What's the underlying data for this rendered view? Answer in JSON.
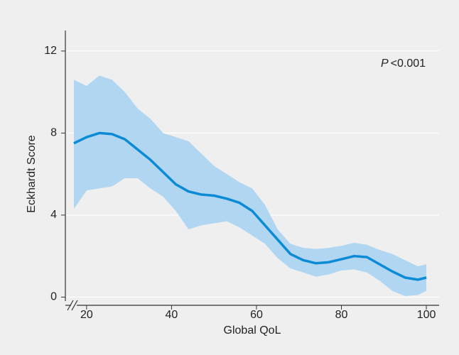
{
  "chart_data": {
    "type": "band-line",
    "x_label": "Global QoL",
    "y_label": "Eckhardt Score",
    "annotation": {
      "symbol": "P",
      "text": "<0.001"
    },
    "x": [
      17,
      20,
      23,
      26,
      29,
      32,
      35,
      38,
      41,
      44,
      47,
      50,
      53,
      56,
      59,
      62,
      65,
      68,
      71,
      74,
      77,
      80,
      83,
      86,
      89,
      92,
      95,
      98,
      100
    ],
    "values": [
      7.5,
      7.8,
      8.0,
      7.95,
      7.7,
      7.2,
      6.7,
      6.1,
      5.5,
      5.15,
      5.0,
      4.95,
      4.8,
      4.6,
      4.2,
      3.5,
      2.8,
      2.1,
      1.8,
      1.65,
      1.7,
      1.85,
      2.0,
      1.95,
      1.6,
      1.25,
      0.95,
      0.85,
      0.95
    ],
    "upper": [
      10.6,
      10.3,
      10.8,
      10.6,
      10.0,
      9.2,
      8.7,
      8.0,
      7.8,
      7.6,
      7.0,
      6.4,
      6.0,
      5.6,
      5.3,
      4.5,
      3.3,
      2.6,
      2.4,
      2.35,
      2.4,
      2.5,
      2.65,
      2.55,
      2.3,
      2.1,
      1.8,
      1.5,
      1.6
    ],
    "lower": [
      4.3,
      5.2,
      5.3,
      5.4,
      5.8,
      5.8,
      5.3,
      4.9,
      4.2,
      3.3,
      3.5,
      3.6,
      3.7,
      3.4,
      3.0,
      2.6,
      1.9,
      1.4,
      1.2,
      1.0,
      1.1,
      1.3,
      1.35,
      1.2,
      0.8,
      0.3,
      0.05,
      0.1,
      0.3
    ],
    "line_color": "#0b8ad6",
    "band_color": "#b1d6f1",
    "xlim": [
      15,
      103
    ],
    "ylim": [
      -0.4,
      13
    ],
    "xticks": [
      20,
      40,
      60,
      80,
      100
    ],
    "yticks": [
      0,
      4,
      8,
      12
    ],
    "grid": true
  }
}
